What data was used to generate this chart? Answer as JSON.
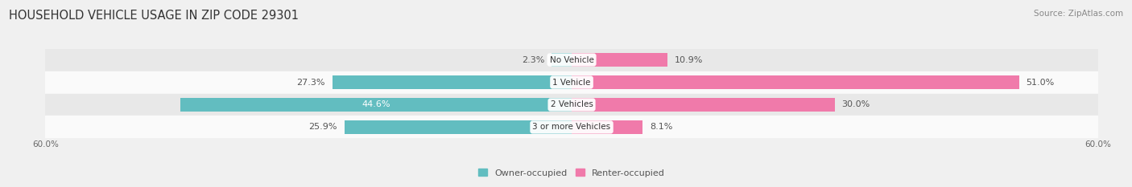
{
  "title": "HOUSEHOLD VEHICLE USAGE IN ZIP CODE 29301",
  "source": "Source: ZipAtlas.com",
  "categories": [
    "No Vehicle",
    "1 Vehicle",
    "2 Vehicles",
    "3 or more Vehicles"
  ],
  "owner_values": [
    2.3,
    27.3,
    44.6,
    25.9
  ],
  "renter_values": [
    10.9,
    51.0,
    30.0,
    8.1
  ],
  "owner_color": "#62bdc0",
  "renter_color": "#f07aaa",
  "owner_label": "Owner-occupied",
  "renter_label": "Renter-occupied",
  "xlim": [
    -60,
    60
  ],
  "xtick_labels": [
    "60.0%",
    "60.0%"
  ],
  "bar_height": 0.58,
  "bg_color": "#f0f0f0",
  "row_colors": [
    "#e8e8e8",
    "#fafafa",
    "#e8e8e8",
    "#fafafa"
  ],
  "title_fontsize": 10.5,
  "source_fontsize": 7.5,
  "label_fontsize": 8,
  "category_fontsize": 7.5,
  "legend_fontsize": 8,
  "axis_label_fontsize": 7.5
}
